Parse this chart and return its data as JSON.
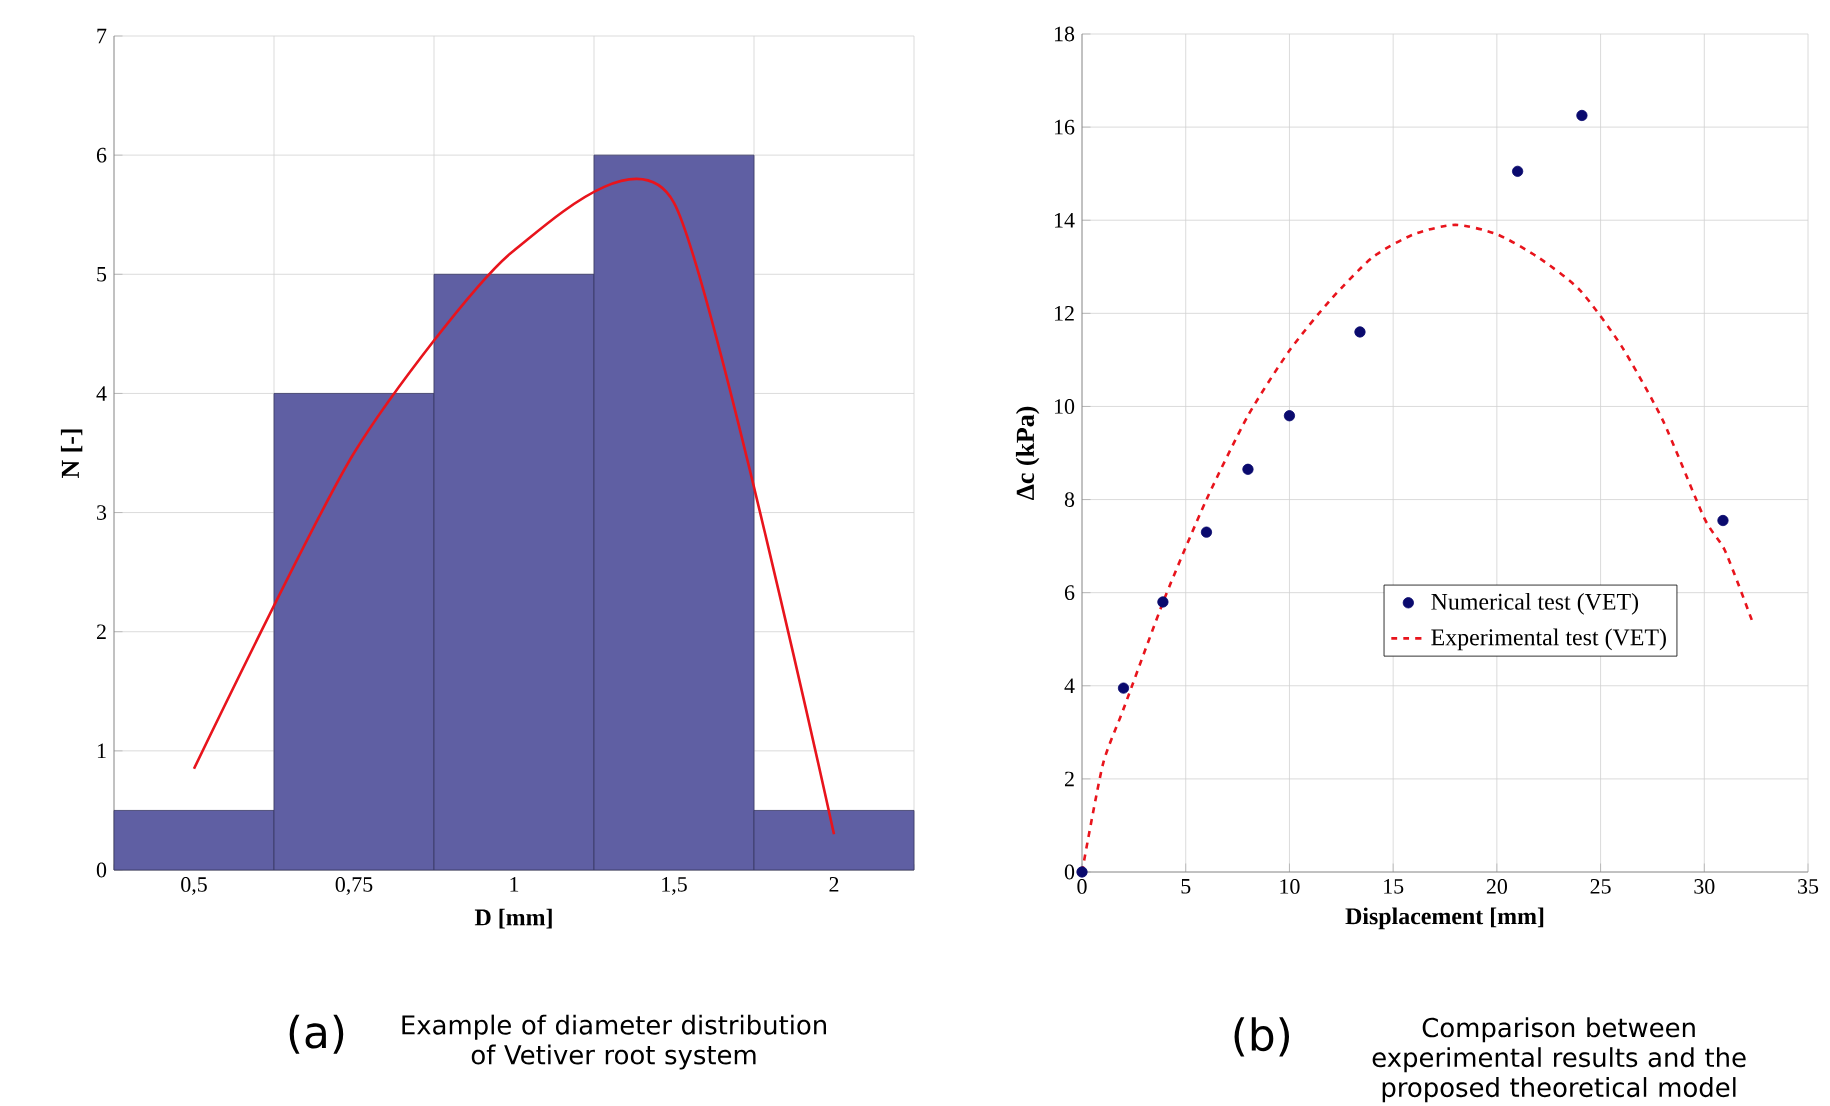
{
  "chart_data": [
    {
      "type": "bar",
      "categories": [
        "0,5",
        "0,75",
        "1",
        "1,5",
        "2"
      ],
      "xlabel": "D [mm]",
      "ylabel": "N [-]",
      "ylim": [
        0,
        7
      ],
      "yticks": [
        0,
        1,
        2,
        3,
        4,
        5,
        6,
        7
      ],
      "grid": true,
      "legend": false,
      "series": [
        {
          "color": "#5f5fa3",
          "values": [
            0.5,
            4,
            5,
            6,
            0.5
          ]
        },
        {
          "type": "line",
          "color": "#e8141c",
          "values": [
            0.85,
            3.5,
            5.2,
            5.6,
            0.3
          ]
        }
      ],
      "annotations": [
        "(a)",
        "Example of diameter distribution of Vetiver root system"
      ]
    },
    {
      "type": "scatter",
      "xlabel": "Displacement [mm]",
      "ylabel": "Δc (kPa)",
      "xlim": [
        0,
        35
      ],
      "xticks": [
        0,
        5,
        10,
        15,
        20,
        25,
        30,
        35
      ],
      "ylim": [
        0,
        18
      ],
      "yticks": [
        0,
        2,
        4,
        6,
        8,
        10,
        12,
        14,
        16,
        18
      ],
      "grid": true,
      "legend": "bottom right",
      "marker": "circle",
      "series": [
        {
          "name": "Numerical test (VET)",
          "color": "#0a0a6e",
          "x": [
            0,
            2,
            3.9,
            6,
            8,
            10,
            13.4,
            21,
            24.1,
            30.9
          ],
          "values": [
            0,
            3.95,
            5.8,
            7.3,
            8.65,
            9.8,
            11.6,
            15.05,
            16.25,
            7.55
          ]
        },
        {
          "name": "Experimental test (VET)",
          "type": "line",
          "marker": "none",
          "line_style": "dashed",
          "color": "#e8141c",
          "x": [
            0,
            1,
            2,
            4,
            6,
            8,
            10,
            12,
            14,
            16,
            18,
            20,
            22,
            24,
            26,
            28,
            30,
            31,
            32.3
          ],
          "values": [
            0,
            2.3,
            3.5,
            5.9,
            8,
            9.8,
            11.2,
            12.3,
            13.2,
            13.7,
            13.9,
            13.7,
            13.2,
            12.5,
            11.3,
            9.7,
            7.6,
            6.9,
            5.4
          ]
        }
      ],
      "annotations": [
        "(b)",
        "Comparison between experimental results and the proposed theoretical model"
      ]
    }
  ]
}
